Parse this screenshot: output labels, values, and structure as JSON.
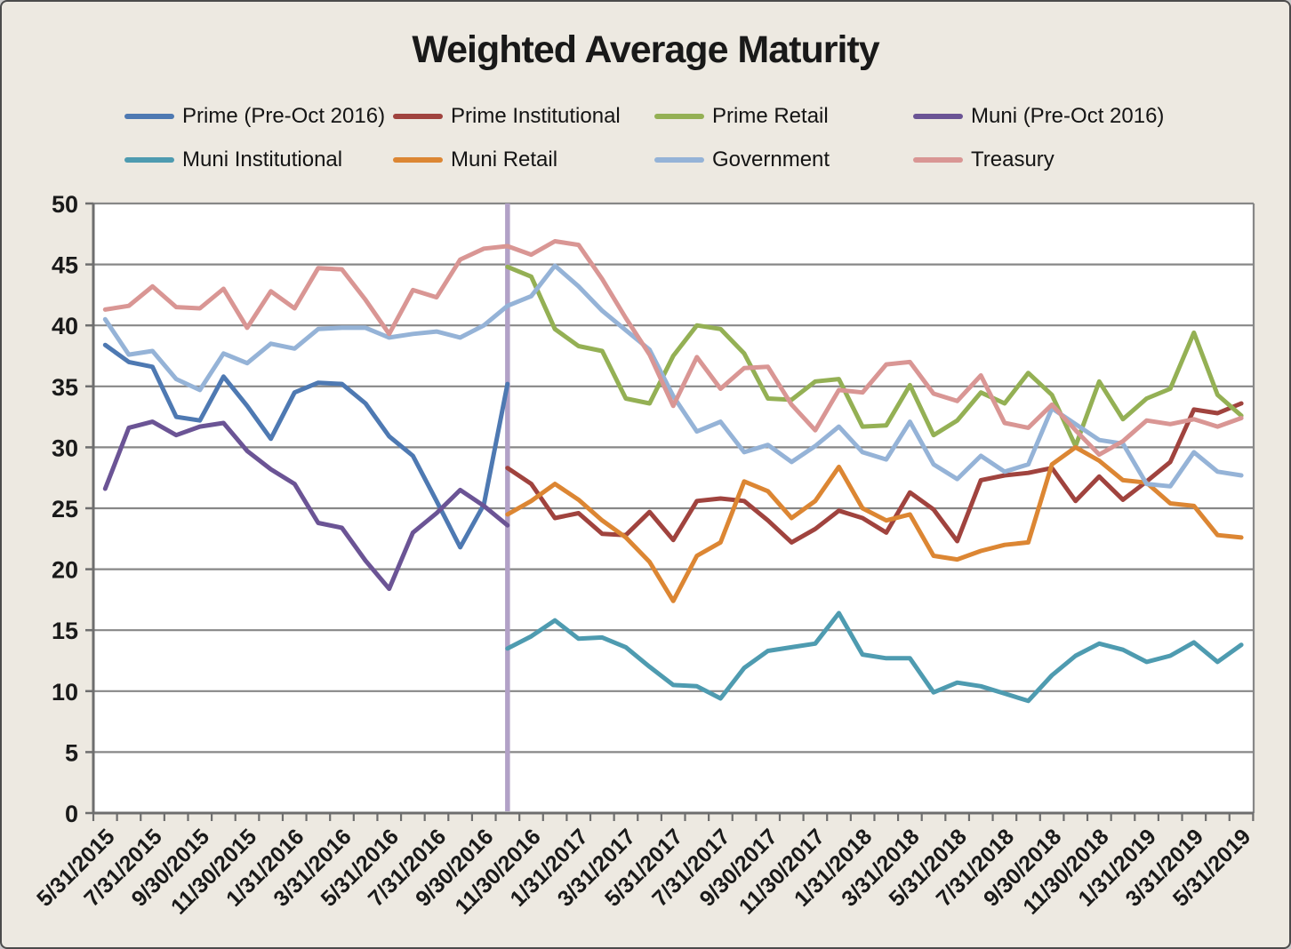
{
  "chart_data": {
    "type": "line",
    "title": "Weighted Average Maturity",
    "ylabel": "",
    "xlabel": "",
    "ylim": [
      0,
      50
    ],
    "ytick_step": 5,
    "grid": "horizontal",
    "legend_position": "top",
    "x_label_every": 2,
    "x_categories": [
      "5/31/2015",
      "6/30/2015",
      "7/31/2015",
      "8/31/2015",
      "9/30/2015",
      "10/31/2015",
      "11/30/2015",
      "12/31/2015",
      "1/31/2016",
      "2/29/2016",
      "3/31/2016",
      "4/30/2016",
      "5/31/2016",
      "6/30/2016",
      "7/31/2016",
      "8/31/2016",
      "9/30/2016",
      "10/31/2016",
      "11/30/2016",
      "12/31/2016",
      "1/31/2017",
      "2/28/2017",
      "3/31/2017",
      "4/30/2017",
      "5/31/2017",
      "6/30/2017",
      "7/31/2017",
      "8/31/2017",
      "9/30/2017",
      "10/31/2017",
      "11/30/2017",
      "12/31/2017",
      "1/31/2018",
      "2/28/2018",
      "3/31/2018",
      "4/30/2018",
      "5/31/2018",
      "6/30/2018",
      "7/31/2018",
      "8/31/2018",
      "9/30/2018",
      "10/31/2018",
      "11/30/2018",
      "12/31/2018",
      "1/31/2019",
      "2/28/2019",
      "3/31/2019",
      "4/30/2019",
      "5/31/2019"
    ],
    "event_line": {
      "at_category": "10/31/2016",
      "at_index": 17,
      "color": "#B2A1C7"
    },
    "series": [
      {
        "name": "Prime (Pre-Oct 2016)",
        "key": "prime_pre",
        "color": "#4E79B2",
        "start_index": 0,
        "values": [
          38.4,
          37.0,
          36.6,
          32.5,
          32.2,
          35.8,
          33.4,
          30.7,
          34.5,
          35.3,
          35.2,
          33.6,
          30.9,
          29.3,
          25.6,
          21.8,
          25.3,
          35.2
        ]
      },
      {
        "name": "Prime Institutional",
        "key": "prime_inst",
        "color": "#A0433E",
        "start_index": 17,
        "values": [
          28.3,
          27.0,
          24.2,
          24.6,
          22.9,
          22.8,
          24.7,
          22.4,
          25.6,
          25.8,
          25.6,
          24.0,
          22.2,
          23.3,
          24.8,
          24.2,
          23.0,
          26.3,
          24.9,
          22.3,
          27.3,
          27.7,
          27.9,
          28.3,
          25.6,
          27.6,
          25.7,
          27.2,
          28.8,
          33.1,
          32.8,
          33.6
        ]
      },
      {
        "name": "Prime Retail",
        "key": "prime_retail",
        "color": "#94B054",
        "start_index": 17,
        "values": [
          44.8,
          44.0,
          39.7,
          38.3,
          37.9,
          34.0,
          33.6,
          37.5,
          40.0,
          39.7,
          37.7,
          34.0,
          33.9,
          35.4,
          35.6,
          31.7,
          31.8,
          35.1,
          31.0,
          32.2,
          34.5,
          33.6,
          36.1,
          34.3,
          30.1,
          35.4,
          32.3,
          34.0,
          34.8,
          39.4,
          34.3,
          32.6
        ]
      },
      {
        "name": "Muni (Pre-Oct 2016)",
        "key": "muni_pre",
        "color": "#6B5495",
        "start_index": 0,
        "values": [
          26.6,
          31.6,
          32.1,
          31.0,
          31.7,
          32.0,
          29.7,
          28.2,
          27.0,
          23.8,
          23.4,
          20.7,
          18.4,
          23.0,
          24.6,
          26.5,
          25.2,
          23.6
        ]
      },
      {
        "name": "Muni Institutional",
        "key": "muni_inst",
        "color": "#4E9BB0",
        "start_index": 17,
        "values": [
          13.5,
          14.5,
          15.8,
          14.3,
          14.4,
          13.6,
          12.0,
          10.5,
          10.4,
          9.4,
          11.9,
          13.3,
          13.6,
          13.9,
          16.4,
          13.0,
          12.7,
          12.7,
          9.9,
          10.7,
          10.4,
          9.8,
          9.2,
          11.3,
          12.9,
          13.9,
          13.4,
          12.4,
          12.9,
          14.0,
          12.4,
          13.8
        ]
      },
      {
        "name": "Muni Retail",
        "key": "muni_retail",
        "color": "#DC8633",
        "start_index": 17,
        "values": [
          24.5,
          25.6,
          27.0,
          25.7,
          24.0,
          22.6,
          20.6,
          17.4,
          21.1,
          22.2,
          27.2,
          26.4,
          24.2,
          25.6,
          28.4,
          25.0,
          24.0,
          24.5,
          21.1,
          20.8,
          21.5,
          22.0,
          22.2,
          28.6,
          30.0,
          28.9,
          27.3,
          27.1,
          25.4,
          25.2,
          22.8,
          22.6
        ]
      },
      {
        "name": "Government",
        "key": "government",
        "color": "#95B3D7",
        "start_index": 0,
        "values": [
          40.5,
          37.6,
          37.9,
          35.6,
          34.7,
          37.7,
          36.9,
          38.5,
          38.1,
          39.7,
          39.8,
          39.8,
          39.0,
          39.3,
          39.5,
          39.0,
          40.0,
          41.6,
          42.4,
          44.9,
          43.2,
          41.2,
          39.6,
          38.0,
          34.2,
          31.3,
          32.1,
          29.6,
          30.2,
          28.8,
          30.1,
          31.7,
          29.6,
          29.0,
          32.1,
          28.6,
          27.4,
          29.3,
          28.0,
          28.6,
          33.2,
          31.9,
          30.6,
          30.3,
          27.0,
          26.8,
          29.6,
          28.0,
          27.7
        ]
      },
      {
        "name": "Treasury",
        "key": "treasury",
        "color": "#D99694",
        "start_index": 0,
        "values": [
          41.3,
          41.6,
          43.2,
          41.5,
          41.4,
          43.0,
          39.8,
          42.8,
          41.4,
          44.7,
          44.6,
          42.1,
          39.3,
          42.9,
          42.3,
          45.4,
          46.3,
          46.5,
          45.8,
          46.9,
          46.6,
          43.8,
          40.6,
          37.6,
          33.4,
          37.4,
          34.8,
          36.5,
          36.6,
          33.5,
          31.4,
          34.7,
          34.5,
          36.8,
          37.0,
          34.4,
          33.8,
          35.9,
          32.0,
          31.6,
          33.5,
          31.4,
          29.4,
          30.5,
          32.2,
          31.9,
          32.3,
          31.7,
          32.4
        ]
      }
    ],
    "legend_rows": [
      [
        "prime_pre",
        "prime_inst",
        "prime_retail",
        "muni_pre"
      ],
      [
        "muni_inst",
        "muni_retail",
        "government",
        "treasury"
      ]
    ],
    "colors": {
      "grid": "#878787",
      "axis": "#6E6E6E",
      "background": "#EDE9E1",
      "plot_background": "#FFFFFF",
      "text": "#1A1A1A"
    }
  }
}
